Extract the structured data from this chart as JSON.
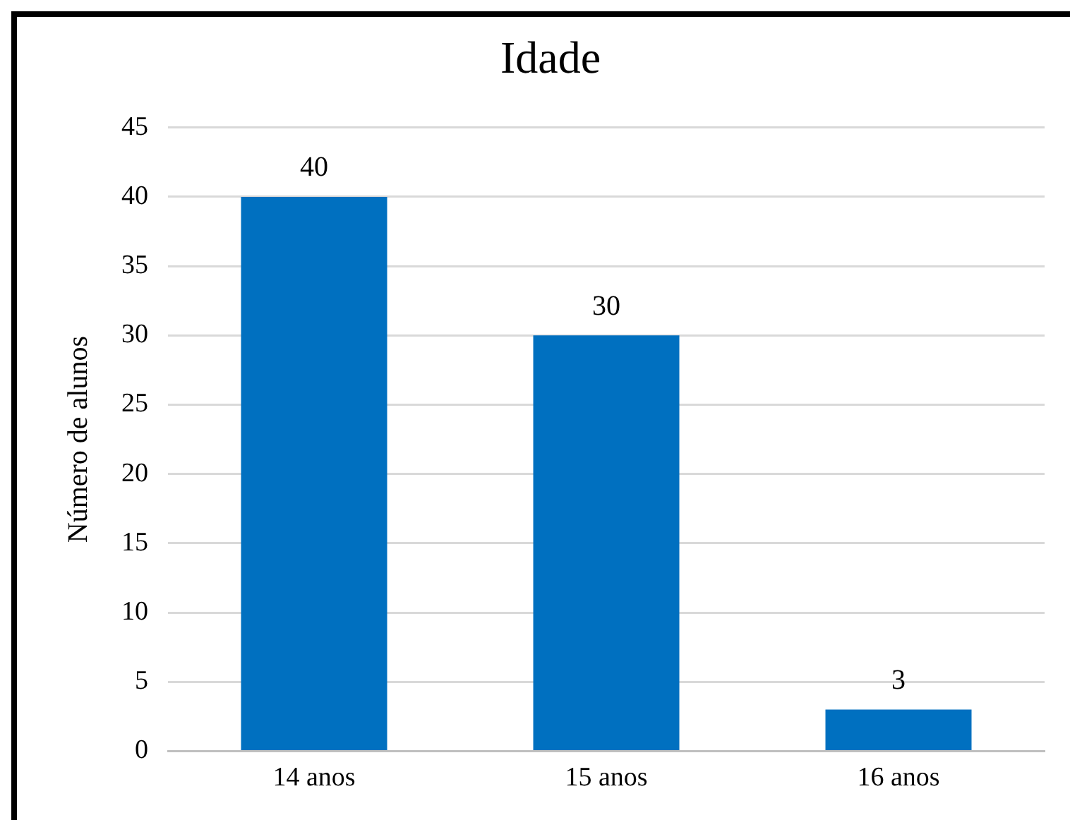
{
  "chart_data": {
    "type": "bar",
    "title": "Idade",
    "ylabel": "Número de alunos",
    "categories": [
      "14 anos",
      "15 anos",
      "16 anos"
    ],
    "values": [
      40,
      30,
      3
    ],
    "color": "#0070c0",
    "ylim": [
      0,
      45
    ],
    "yticks": [
      0,
      5,
      10,
      15,
      20,
      25,
      30,
      35,
      40,
      45
    ],
    "grid": "y",
    "data_labels": true,
    "legend": false
  }
}
